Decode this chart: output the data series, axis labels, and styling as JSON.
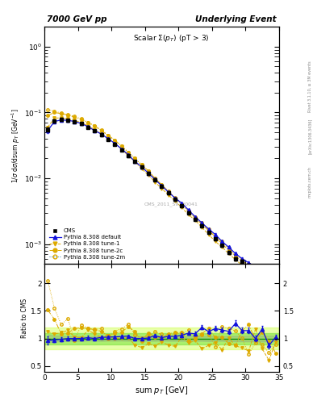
{
  "title_left": "7000 GeV pp",
  "title_right": "Underlying Event",
  "plot_title": "Scalar $\\Sigma(p_T)$ (pT > 3)",
  "ylabel_main": "1/$\\sigma$ d$\\sigma$/dsum $p_T$ [GeV$^{-1}$]",
  "ylabel_ratio": "Ratio to CMS",
  "xlabel": "sum $p_T$ [GeV]",
  "watermark": "CMS_2011_S9120041",
  "rivet_label": "Rivet 3.1.10, ≥ 3M events",
  "arxiv_label": "[arXiv:1306.3436]",
  "mcplots_label": "mcplots.cern.ch",
  "xlim": [
    0,
    35
  ],
  "ylim_main": [
    0.0005,
    2.0
  ],
  "ylim_ratio": [
    0.4,
    2.4
  ],
  "cms_x": [
    0.5,
    1.5,
    2.5,
    3.5,
    4.5,
    5.5,
    6.5,
    7.5,
    8.5,
    9.5,
    10.5,
    11.5,
    12.5,
    13.5,
    14.5,
    15.5,
    16.5,
    17.5,
    18.5,
    19.5,
    20.5,
    21.5,
    22.5,
    23.5,
    24.5,
    25.5,
    26.5,
    27.5,
    28.5,
    29.5,
    30.5,
    31.5,
    32.5,
    33.5,
    34.5
  ],
  "cms_y": [
    0.055,
    0.075,
    0.078,
    0.076,
    0.073,
    0.068,
    0.06,
    0.053,
    0.046,
    0.039,
    0.033,
    0.027,
    0.022,
    0.018,
    0.015,
    0.012,
    0.0095,
    0.0076,
    0.006,
    0.0048,
    0.0038,
    0.003,
    0.0024,
    0.0019,
    0.0015,
    0.0012,
    0.00095,
    0.00075,
    0.0006,
    0.00055,
    0.00048,
    0.00042,
    0.00038,
    0.00035,
    0.00032
  ],
  "cms_yerr": [
    0.004,
    0.004,
    0.004,
    0.003,
    0.003,
    0.003,
    0.002,
    0.002,
    0.002,
    0.0015,
    0.0013,
    0.001,
    0.0009,
    0.0007,
    0.0006,
    0.0005,
    0.0004,
    0.0003,
    0.00025,
    0.0002,
    0.00016,
    0.00013,
    0.0001,
    8e-05,
    7e-05,
    5e-05,
    4e-05,
    3.5e-05,
    3e-05,
    2.8e-05,
    2.5e-05,
    2.2e-05,
    2e-05,
    1.8e-05,
    1.6e-05
  ],
  "py_default_x": [
    0.5,
    1.5,
    2.5,
    3.5,
    4.5,
    5.5,
    6.5,
    7.5,
    8.5,
    9.5,
    10.5,
    11.5,
    12.5,
    13.5,
    14.5,
    15.5,
    16.5,
    17.5,
    18.5,
    19.5,
    20.5,
    21.5,
    22.5,
    23.5,
    24.5,
    25.5,
    26.5,
    27.5,
    28.5,
    29.5,
    30.5,
    31.5,
    32.5,
    33.5,
    34.5
  ],
  "py_default_y": [
    0.053,
    0.073,
    0.077,
    0.076,
    0.073,
    0.068,
    0.061,
    0.053,
    0.047,
    0.04,
    0.034,
    0.028,
    0.023,
    0.018,
    0.015,
    0.012,
    0.0096,
    0.0077,
    0.0062,
    0.005,
    0.0042,
    0.0033,
    0.0026,
    0.0021,
    0.0017,
    0.0014,
    0.0011,
    0.0009,
    0.00072,
    0.0006,
    0.00052,
    0.00045,
    0.0004,
    0.00035,
    0.00031
  ],
  "py_default_yerr": [
    0.004,
    0.003,
    0.003,
    0.003,
    0.002,
    0.002,
    0.002,
    0.0015,
    0.0015,
    0.001,
    0.001,
    0.0008,
    0.0006,
    0.0005,
    0.0004,
    0.0004,
    0.0003,
    0.00025,
    0.0002,
    0.00016,
    0.00014,
    0.00011,
    9e-05,
    7e-05,
    6e-05,
    5e-05,
    4e-05,
    3.5e-05,
    3e-05,
    2.8e-05,
    2.5e-05,
    2.2e-05,
    2e-05,
    1.8e-05,
    1.6e-05
  ],
  "py_tune1_x": [
    0.5,
    1.5,
    2.5,
    3.5,
    4.5,
    5.5,
    6.5,
    7.5,
    8.5,
    9.5,
    10.5,
    11.5,
    12.5,
    13.5,
    14.5,
    15.5,
    16.5,
    17.5,
    18.5,
    19.5,
    20.5,
    21.5,
    22.5,
    23.5,
    24.5,
    25.5,
    26.5,
    27.5,
    28.5,
    29.5,
    30.5,
    31.5,
    32.5,
    33.5,
    34.5
  ],
  "py_tune1_y": [
    0.06,
    0.082,
    0.083,
    0.08,
    0.076,
    0.07,
    0.063,
    0.055,
    0.048,
    0.04,
    0.034,
    0.028,
    0.022,
    0.018,
    0.014,
    0.0112,
    0.0088,
    0.007,
    0.0056,
    0.0045,
    0.0036,
    0.0028,
    0.0023,
    0.0018,
    0.0014,
    0.0011,
    0.0009,
    0.00072,
    0.00058,
    0.00048,
    0.00042,
    0.00036,
    0.00031,
    0.00028,
    0.00025
  ],
  "py_tune2c_x": [
    0.5,
    1.5,
    2.5,
    3.5,
    4.5,
    5.5,
    6.5,
    7.5,
    8.5,
    9.5,
    10.5,
    11.5,
    12.5,
    13.5,
    14.5,
    15.5,
    16.5,
    17.5,
    18.5,
    19.5,
    20.5,
    21.5,
    22.5,
    23.5,
    24.5,
    25.5,
    26.5,
    27.5,
    28.5,
    29.5,
    30.5,
    31.5,
    32.5,
    33.5,
    34.5
  ],
  "py_tune2c_y": [
    0.09,
    0.1,
    0.096,
    0.091,
    0.085,
    0.078,
    0.07,
    0.062,
    0.053,
    0.045,
    0.038,
    0.031,
    0.025,
    0.02,
    0.016,
    0.013,
    0.01,
    0.008,
    0.0063,
    0.005,
    0.004,
    0.0031,
    0.0025,
    0.002,
    0.0016,
    0.0013,
    0.001,
    0.00082,
    0.00065,
    0.00055,
    0.00048,
    0.00041,
    0.00035,
    0.00031,
    0.00028
  ],
  "py_tune2m_x": [
    0.5,
    1.5,
    2.5,
    3.5,
    4.5,
    5.5,
    6.5,
    7.5,
    8.5,
    9.5,
    10.5,
    11.5,
    12.5,
    13.5,
    14.5,
    15.5,
    16.5,
    17.5,
    18.5,
    19.5,
    20.5,
    21.5,
    22.5,
    23.5,
    24.5,
    25.5,
    26.5,
    27.5,
    28.5,
    29.5,
    30.5,
    31.5,
    32.5,
    33.5,
    34.5
  ],
  "py_tune2m_y": [
    0.11,
    0.105,
    0.098,
    0.093,
    0.087,
    0.08,
    0.071,
    0.063,
    0.054,
    0.045,
    0.038,
    0.031,
    0.025,
    0.02,
    0.016,
    0.013,
    0.01,
    0.008,
    0.0064,
    0.0051,
    0.0041,
    0.0032,
    0.0026,
    0.0021,
    0.0017,
    0.0013,
    0.0011,
    0.00085,
    0.00068,
    0.00058,
    0.0005,
    0.00043,
    0.00037,
    0.00033,
    0.0003
  ],
  "band_inner_color": "#33cc33",
  "band_outer_color": "#ccff44",
  "cms_color": "black",
  "py_default_color": "#1111dd",
  "py_tune_color": "#ddaa00",
  "ratio_scatter_seed": 42,
  "ratio_ylim": [
    0.4,
    2.35
  ],
  "ratio_yticks": [
    0.5,
    1.0,
    1.5,
    2.0
  ]
}
